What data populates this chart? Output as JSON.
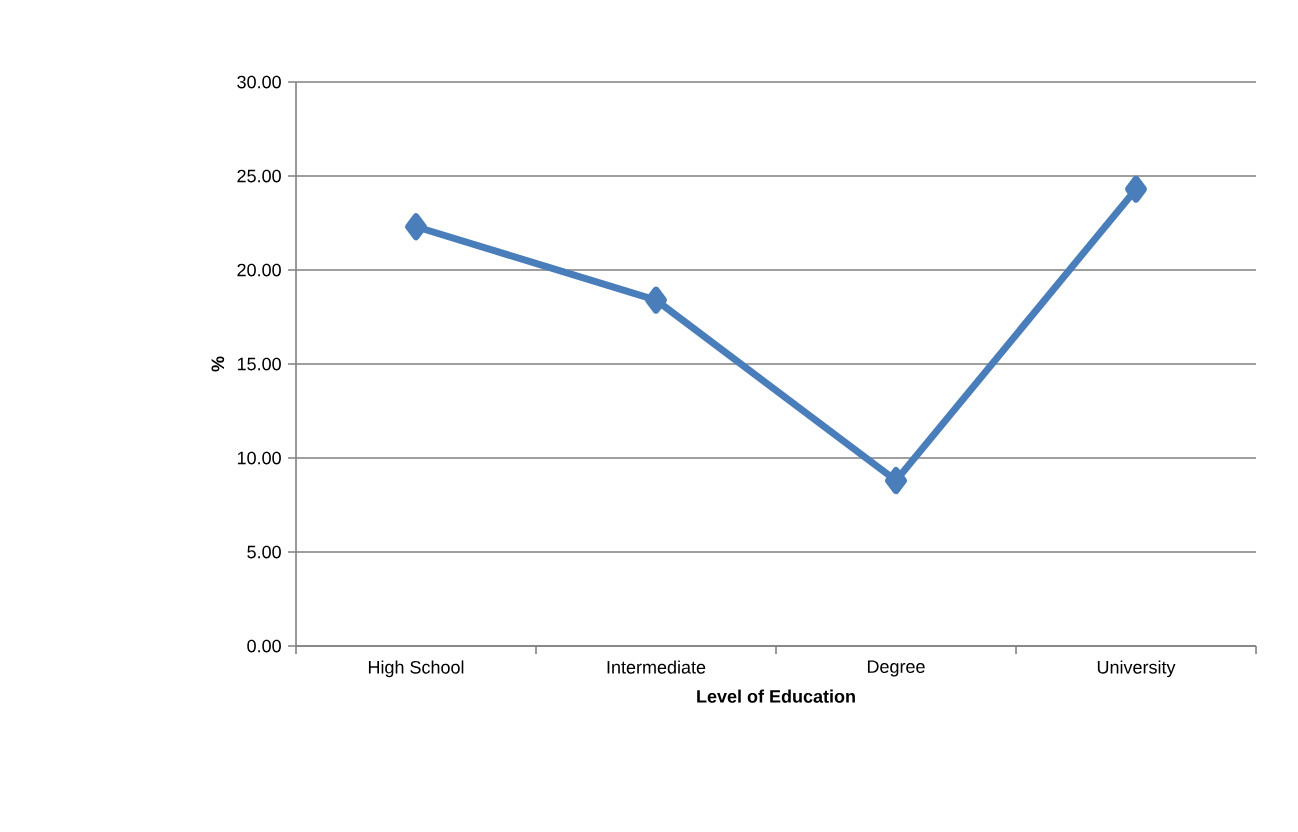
{
  "chart_data": {
    "type": "line",
    "xlabel": "Level of Education",
    "ylabel": "%",
    "categories": [
      "High School",
      "Intermediate",
      "Degree",
      "University"
    ],
    "series": [
      {
        "color": "#4a7ebb",
        "values": [
          22.3,
          18.4,
          8.8,
          24.3
        ]
      }
    ],
    "ylim": [
      0,
      30
    ],
    "yticks": [
      {
        "value": 0,
        "label": "0.00"
      },
      {
        "value": 5,
        "label": "5.00"
      },
      {
        "value": 10,
        "label": "10.00"
      },
      {
        "value": 15,
        "label": "15.00"
      },
      {
        "value": 20,
        "label": "20.00"
      },
      {
        "value": 25,
        "label": "25.00"
      },
      {
        "value": 30,
        "label": "30.00"
      }
    ],
    "grid": "y",
    "marker": "diamond",
    "line_style": "solid"
  }
}
